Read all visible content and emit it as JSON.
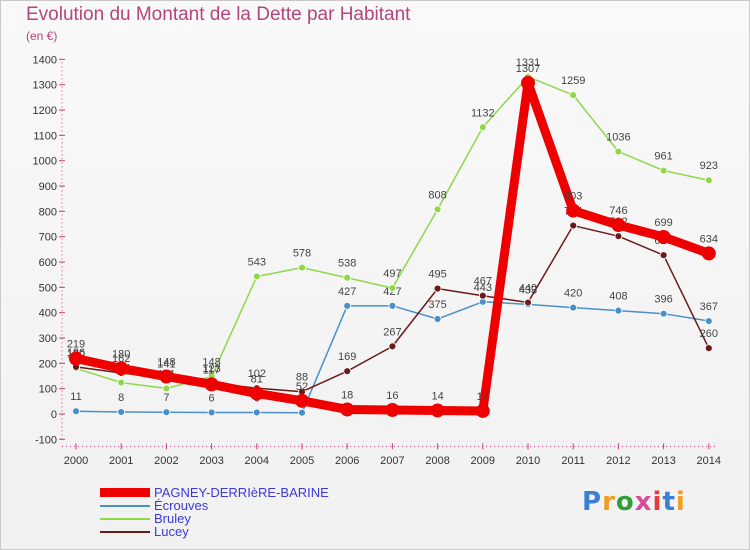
{
  "title": "Evolution du Montant de la Dette par Habitant",
  "subtitle": "(en €)",
  "logo": {
    "text": "Proxiti",
    "colors": [
      "#3a7fd5",
      "#f0a020",
      "#2e9e3a",
      "#d84a9a",
      "#e83b3b",
      "#3a7fd5",
      "#f0a020"
    ]
  },
  "chart_data": {
    "type": "line",
    "title": "Evolution du Montant de la Dette par Habitant",
    "subtitle": "(en €)",
    "xlabel": "",
    "ylabel": "",
    "x": [
      "2000",
      "2001",
      "2002",
      "2003",
      "2004",
      "2005",
      "2006",
      "2007",
      "2008",
      "2009",
      "2010",
      "2011",
      "2012",
      "2013",
      "2014"
    ],
    "ylim": [
      -100,
      1400
    ],
    "yticks": [
      "-100",
      "0",
      "100",
      "200",
      "300",
      "400",
      "500",
      "600",
      "700",
      "800",
      "900",
      "1000",
      "1100",
      "1200",
      "1300",
      "1400"
    ],
    "grid": false,
    "legend_position": "bottom-left",
    "series": [
      {
        "name": "Écrouves",
        "color": "#4a90c8",
        "values": [
          11,
          8,
          7,
          6,
          6,
          5,
          427,
          427,
          375,
          443,
          433,
          420,
          408,
          396,
          367
        ],
        "labels": [
          "11",
          "8",
          "7",
          "6",
          "6",
          "5",
          "427",
          "427",
          "375",
          "443",
          "433",
          "420",
          "408",
          "396",
          "367"
        ]
      },
      {
        "name": "Bruley",
        "color": "#8ed84a",
        "values": [
          180,
          124,
          101,
          148,
          543,
          578,
          538,
          497,
          808,
          1132,
          1331,
          1259,
          1036,
          961,
          923
        ],
        "labels": [
          "180",
          "124",
          "101",
          "148",
          "543",
          "578",
          "538",
          "497",
          "808",
          "1132",
          "1331",
          "1259",
          "1036",
          "961",
          "923"
        ]
      },
      {
        "name": "Lucey",
        "color": "#6b1a1a",
        "values": [
          186,
          162,
          141,
          123,
          102,
          88,
          169,
          267,
          495,
          467,
          440,
          744,
          702,
          627,
          260
        ],
        "labels": [
          "186",
          "162",
          "141",
          "123",
          "102",
          "88",
          "169",
          "267",
          "495",
          "467",
          "440",
          "744",
          "702",
          "627",
          "260"
        ]
      },
      {
        "name": "PAGNEY-DERRIèRE-BARINE",
        "color": "#ee0000",
        "values": [
          219,
          180,
          148,
          117,
          81,
          52,
          18,
          16,
          14,
          12,
          1307,
          803,
          746,
          699,
          634
        ],
        "labels": [
          "219",
          "180",
          "148",
          "117",
          "81",
          "52",
          "18",
          "16",
          "14",
          "12",
          "1307",
          "803",
          "746",
          "699",
          "634"
        ]
      }
    ]
  },
  "legend": [
    {
      "label": "PAGNEY-DERRIèRE-BARINE",
      "color": "#ee0000"
    },
    {
      "label": "Écrouves",
      "color": "#4a90c8"
    },
    {
      "label": "Bruley",
      "color": "#8ed84a"
    },
    {
      "label": "Lucey",
      "color": "#6b1a1a"
    }
  ]
}
